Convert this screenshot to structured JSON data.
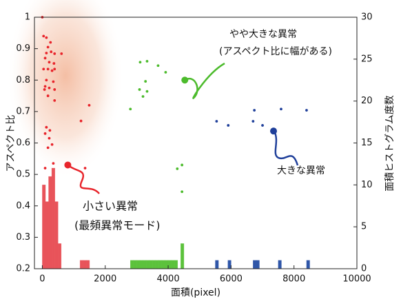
{
  "chart_data": [
    {
      "type": "scatter",
      "xlabel": "面積(pixel)",
      "ylabel": "アスペクト比",
      "xlim": [
        -250,
        10000
      ],
      "xticks": [
        0,
        2000,
        4000,
        6000,
        8000,
        10000
      ],
      "ylim": [
        0.2,
        1
      ],
      "yticks": [
        0.2,
        0.3,
        0.4,
        0.5,
        0.6,
        0.7,
        0.8,
        0.9,
        1
      ],
      "series": [
        {
          "color": "#e8242b",
          "x": [
            0,
            40,
            130,
            260,
            180,
            280,
            130,
            390,
            610,
            90,
            220,
            370,
            40,
            180,
            310,
            390,
            130,
            90,
            220,
            350,
            70,
            390,
            180,
            390,
            1490,
            1230,
            130,
            240,
            90,
            220,
            310,
            180,
            350,
            1360,
            90
          ],
          "values": [
            1.0,
            0.94,
            0.935,
            0.92,
            0.905,
            0.89,
            0.886,
            0.884,
            0.884,
            0.87,
            0.857,
            0.853,
            0.835,
            0.835,
            0.83,
            0.835,
            0.8,
            0.78,
            0.775,
            0.795,
            0.77,
            0.77,
            0.75,
            0.735,
            0.72,
            0.67,
            0.65,
            0.64,
            0.63,
            0.615,
            0.595,
            0.585,
            0.535,
            0.52,
            0.52
          ]
        },
        {
          "color": "#4cbb2c",
          "x": [
            3110,
            3330,
            3680,
            3920,
            3280,
            3090,
            3200,
            3330,
            2800,
            4440,
            4290,
            4440
          ],
          "values": [
            0.857,
            0.86,
            0.846,
            0.825,
            0.796,
            0.77,
            0.748,
            0.764,
            0.708,
            0.53,
            0.518,
            0.445
          ]
        },
        {
          "color": "#1f3f9a",
          "x": [
            6740,
            7590,
            8400,
            5540,
            5910,
            6700,
            7000
          ],
          "values": [
            0.704,
            0.708,
            0.704,
            0.669,
            0.656,
            0.669,
            0.656
          ]
        }
      ],
      "callouts": [
        {
          "x": 810,
          "y": 0.53,
          "color": "#e8242b",
          "label": [
            "小さい異常",
            "(最頻異常モード)"
          ]
        },
        {
          "x": 4530,
          "y": 0.8,
          "color": "#4cbb2c",
          "label": [
            "やや大きな異常",
            "(アスペクト比に幅がある)"
          ]
        },
        {
          "x": 7350,
          "y": 0.638,
          "color": "#1f3f9a",
          "label": [
            "大きな異常"
          ]
        }
      ]
    },
    {
      "type": "histogram",
      "axis": "y2",
      "ylabel": "面積ヒストグラム度数",
      "y2lim": [
        0,
        30
      ],
      "y2ticks": [
        0,
        5,
        10,
        15,
        20,
        25,
        30
      ],
      "bins": [
        0,
        100,
        200,
        300,
        400,
        500,
        600,
        700,
        800,
        900,
        1000,
        1100,
        1200,
        1300,
        1400,
        1500,
        1600,
        1700,
        1800,
        1900,
        2000,
        2100,
        2200,
        2300,
        2400,
        2500,
        2600,
        2700,
        2800,
        2900,
        3000,
        3100,
        3200,
        3300,
        3400,
        3500,
        3600,
        3700,
        3800,
        3900,
        4000,
        4100,
        4200,
        4300,
        4400,
        4500,
        4600,
        4700,
        4800,
        4900,
        5000,
        5100,
        5200,
        5300,
        5400,
        5500,
        5600,
        5700,
        5800,
        5900,
        6000,
        6100,
        6200,
        6300,
        6400,
        6500,
        6600,
        6700,
        6800,
        6900,
        7000,
        7100,
        7200,
        7300,
        7400,
        7500,
        7600,
        7700,
        7800,
        7900,
        8000,
        8100,
        8200,
        8300,
        8400,
        8500
      ],
      "counts": [
        10,
        8,
        11,
        12,
        8,
        3,
        0,
        0,
        0,
        0,
        0,
        0,
        1,
        1,
        1,
        0,
        0,
        0,
        0,
        0,
        0,
        0,
        0,
        0,
        0,
        0,
        0,
        0,
        1,
        1,
        1,
        1,
        1,
        1,
        1,
        1,
        1,
        1,
        1,
        1,
        1,
        1,
        1,
        0,
        3,
        0,
        0,
        0,
        0,
        0,
        0,
        0,
        0,
        0,
        0,
        1,
        0,
        0,
        0,
        1,
        0,
        0,
        0,
        0,
        0,
        0,
        0,
        1,
        1,
        0,
        0,
        0,
        0,
        0,
        0,
        1,
        0,
        0,
        0,
        0,
        0,
        0,
        0,
        0,
        1
      ],
      "colors": [
        "#e8535a",
        "#5cc23c",
        "#2f56a8"
      ]
    }
  ]
}
